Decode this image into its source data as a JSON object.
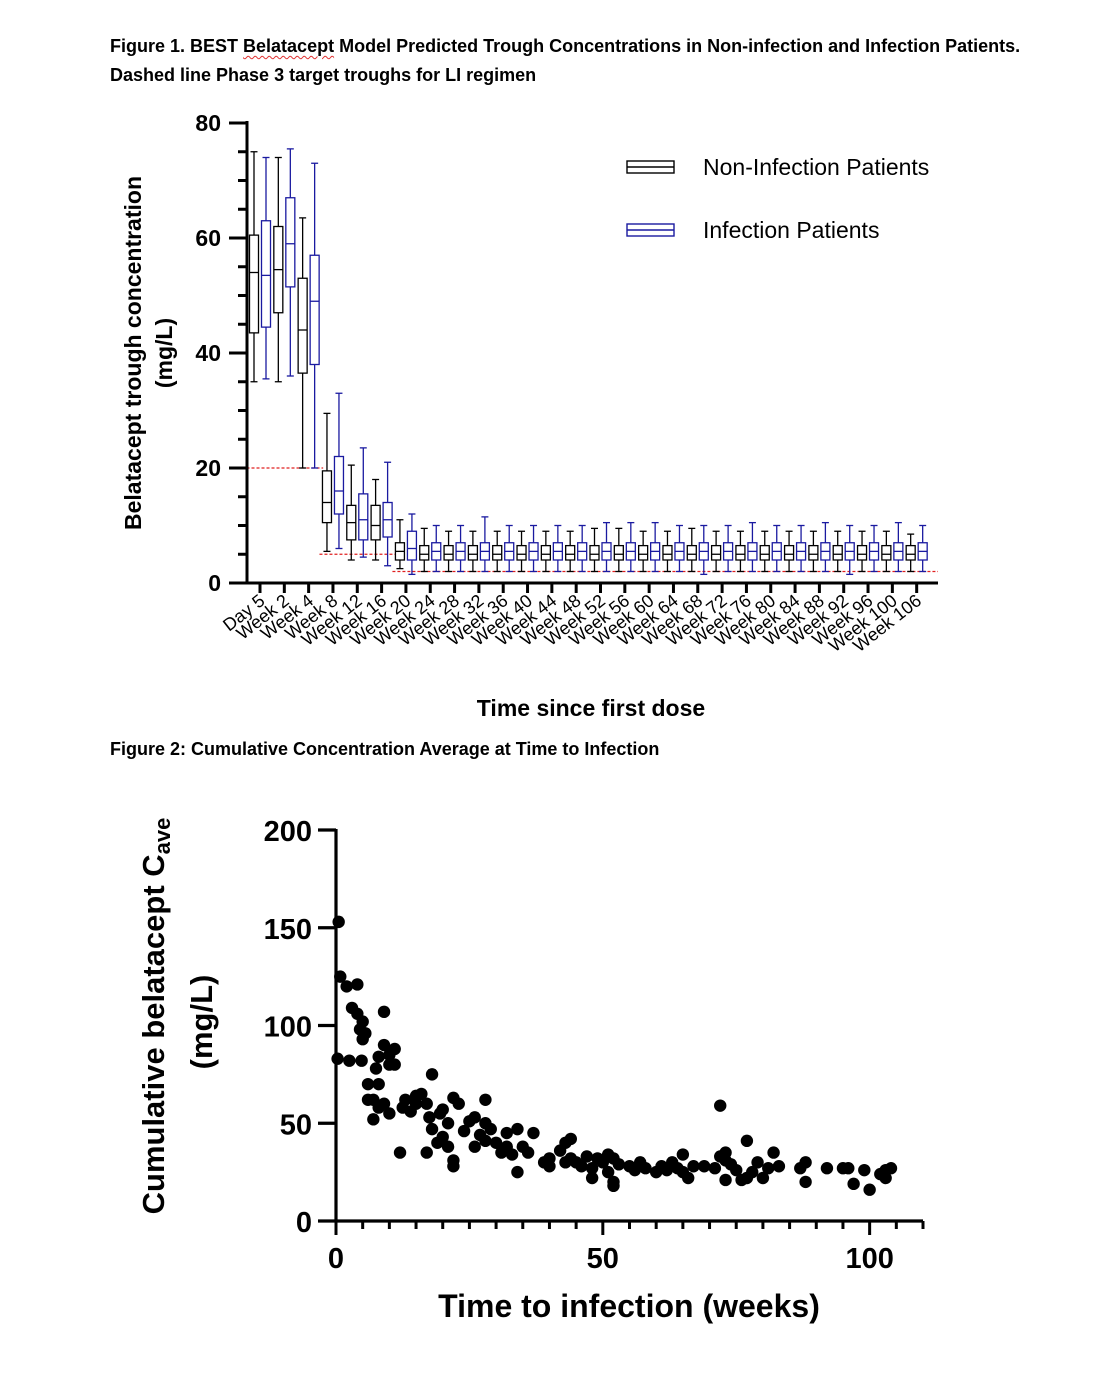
{
  "figure1": {
    "caption_prefix": "Figure 1.  BEST ",
    "caption_squiggle": "Belatacept",
    "caption_rest": " Model Predicted Trough Concentrations in Non-infection and Infection Patients.  Dashed line Phase 3 target troughs for LI regimen"
  },
  "figure2": {
    "caption": "Figure 2:  Cumulative Concentration Average at Time to Infection"
  },
  "chart_data": [
    {
      "type": "box",
      "title": "",
      "xlabel": "Time since first dose",
      "ylabel_line1": "Belatacept trough concentration",
      "ylabel_line2": "(mg/L)",
      "ylim": [
        0,
        80
      ],
      "yticks": [
        0,
        20,
        40,
        60,
        80
      ],
      "legend_position": "top-right",
      "categories": [
        "Day 5",
        "Week 2",
        "Week 4",
        "Week 8",
        "Week 12",
        "Week 16",
        "Week 20",
        "Week 24",
        "Week 28",
        "Week 32",
        "Week 36",
        "Week 40",
        "Week 44",
        "Week 48",
        "Week 52",
        "Week 56",
        "Week 60",
        "Week 64",
        "Week 68",
        "Week 72",
        "Week 76",
        "Week 80",
        "Week 84",
        "Week 88",
        "Week 92",
        "Week 96",
        "Week 100",
        "Week 106"
      ],
      "series": [
        {
          "name": "Non-Infection Patients",
          "color": "#000000",
          "boxes": [
            [
              35,
              43.5,
              54,
              60.5,
              75
            ],
            [
              35,
              47,
              54.5,
              62,
              74
            ],
            [
              20,
              36.5,
              44,
              53,
              63.5
            ],
            [
              5.5,
              10.5,
              14,
              19.5,
              29.5
            ],
            [
              4,
              7.5,
              10.5,
              13.5,
              20.5
            ],
            [
              4,
              7.5,
              10,
              13.5,
              18
            ],
            [
              2.5,
              4,
              5.5,
              7,
              11
            ],
            [
              2,
              4,
              5,
              6.5,
              9.5
            ],
            [
              2,
              4,
              5,
              6.5,
              9
            ],
            [
              2,
              4,
              5,
              6.5,
              9
            ],
            [
              2,
              4,
              5,
              6.5,
              9
            ],
            [
              2,
              4,
              5,
              6.5,
              9
            ],
            [
              2,
              4,
              5,
              6.5,
              9
            ],
            [
              2,
              4,
              5,
              6.5,
              9
            ],
            [
              2,
              4,
              5,
              6.5,
              9.5
            ],
            [
              2,
              4,
              5,
              6.5,
              9.5
            ],
            [
              2,
              4,
              5,
              6.5,
              9
            ],
            [
              2,
              4,
              5,
              6.5,
              9
            ],
            [
              2,
              4,
              5,
              6.5,
              9.5
            ],
            [
              2,
              4,
              5,
              6.5,
              9
            ],
            [
              2,
              4,
              5,
              6.5,
              9
            ],
            [
              2,
              4,
              5,
              6.5,
              9
            ],
            [
              2,
              4,
              5,
              6.5,
              9
            ],
            [
              2,
              4,
              5,
              6.5,
              9
            ],
            [
              2,
              4,
              5,
              6.5,
              9
            ],
            [
              2,
              4,
              5,
              6.5,
              9
            ],
            [
              2,
              4,
              5,
              6.5,
              9
            ],
            [
              2,
              4,
              5,
              6.5,
              8.5
            ]
          ]
        },
        {
          "name": "Infection Patients",
          "color": "#1a1aa0",
          "boxes": [
            [
              35.5,
              44.5,
              53.5,
              63,
              74
            ],
            [
              36,
              51.5,
              59,
              67,
              75.5
            ],
            [
              20,
              38,
              49,
              57,
              73
            ],
            [
              6,
              12,
              16,
              22,
              33
            ],
            [
              4.5,
              7.5,
              11,
              15.5,
              23.5
            ],
            [
              3,
              8,
              11,
              14,
              21
            ],
            [
              1.5,
              4,
              6,
              9,
              12
            ],
            [
              2,
              4,
              5.5,
              7,
              10
            ],
            [
              2,
              4,
              5.5,
              7,
              10
            ],
            [
              2,
              4,
              5.5,
              7,
              11.5
            ],
            [
              2,
              4,
              5.5,
              7,
              10
            ],
            [
              2,
              4,
              5.5,
              7,
              10
            ],
            [
              2,
              4,
              5.5,
              7,
              10
            ],
            [
              2,
              4,
              5.5,
              7,
              10
            ],
            [
              2,
              4,
              5.5,
              7,
              10.5
            ],
            [
              2,
              4,
              5.5,
              7,
              10.5
            ],
            [
              2,
              4,
              5.5,
              7,
              10.5
            ],
            [
              2,
              4,
              5.5,
              7,
              10
            ],
            [
              1.5,
              4,
              5.5,
              7,
              10
            ],
            [
              2,
              4,
              5.5,
              7,
              10
            ],
            [
              2,
              4,
              5.5,
              7,
              10.5
            ],
            [
              2,
              4,
              5.5,
              7,
              10
            ],
            [
              2,
              4,
              5.5,
              7,
              10
            ],
            [
              2,
              4,
              5.5,
              7,
              10.5
            ],
            [
              1.5,
              4,
              5.5,
              7,
              10
            ],
            [
              2,
              4,
              5.5,
              7,
              10
            ],
            [
              2,
              4,
              5.5,
              7,
              10.5
            ],
            [
              2,
              4,
              5.5,
              7,
              10
            ]
          ]
        }
      ],
      "target_lines": [
        {
          "from_category": 0,
          "to_category": 2,
          "value": 20
        },
        {
          "from_category": 3,
          "to_category": 5,
          "value": 5
        },
        {
          "from_category": 6,
          "to_category": 27,
          "value": 2
        }
      ]
    },
    {
      "type": "scatter",
      "title": "",
      "xlabel": "Time to infection (weeks)",
      "ylabel_line1": "Cumulative belatacept C",
      "ylabel_sub": "ave",
      "ylabel_line2": "(mg/L)",
      "xlim": [
        0,
        110
      ],
      "ylim": [
        0,
        200
      ],
      "xticks": [
        0,
        50,
        100
      ],
      "yticks": [
        0,
        50,
        100,
        150,
        200
      ],
      "points": [
        [
          0.5,
          153
        ],
        [
          0.8,
          125
        ],
        [
          2,
          120
        ],
        [
          0.3,
          83
        ],
        [
          2.5,
          82
        ],
        [
          3,
          109
        ],
        [
          4,
          106
        ],
        [
          4,
          121
        ],
        [
          4.5,
          98
        ],
        [
          5,
          102
        ],
        [
          5,
          93
        ],
        [
          4.8,
          82
        ],
        [
          5.5,
          96
        ],
        [
          6,
          70
        ],
        [
          6,
          62
        ],
        [
          7,
          52
        ],
        [
          7,
          62
        ],
        [
          7.5,
          78
        ],
        [
          8,
          84
        ],
        [
          8,
          70
        ],
        [
          8,
          58
        ],
        [
          9,
          107
        ],
        [
          9,
          90
        ],
        [
          9,
          60
        ],
        [
          10,
          85
        ],
        [
          10,
          80
        ],
        [
          10,
          55
        ],
        [
          11,
          88
        ],
        [
          11,
          80
        ],
        [
          12,
          35
        ],
        [
          12.5,
          58
        ],
        [
          13,
          62
        ],
        [
          14,
          56
        ],
        [
          15,
          64
        ],
        [
          15,
          60
        ],
        [
          16,
          65
        ],
        [
          17,
          60
        ],
        [
          17,
          35
        ],
        [
          17.5,
          53
        ],
        [
          18,
          75
        ],
        [
          18,
          47
        ],
        [
          19,
          40
        ],
        [
          19.5,
          55
        ],
        [
          20,
          57
        ],
        [
          20,
          43
        ],
        [
          21,
          38
        ],
        [
          21,
          50
        ],
        [
          22,
          63
        ],
        [
          22,
          31
        ],
        [
          22,
          28
        ],
        [
          23,
          60
        ],
        [
          24,
          46
        ],
        [
          25,
          51
        ],
        [
          26,
          38
        ],
        [
          26,
          53
        ],
        [
          27,
          44
        ],
        [
          28,
          62
        ],
        [
          28,
          50
        ],
        [
          28,
          41
        ],
        [
          29,
          47
        ],
        [
          30,
          40
        ],
        [
          31,
          35
        ],
        [
          32,
          45
        ],
        [
          32,
          38
        ],
        [
          33,
          34
        ],
        [
          34,
          47
        ],
        [
          34,
          25
        ],
        [
          35,
          38
        ],
        [
          36,
          35
        ],
        [
          37,
          45
        ],
        [
          39,
          30
        ],
        [
          40,
          32
        ],
        [
          40,
          28
        ],
        [
          42,
          36
        ],
        [
          43,
          30
        ],
        [
          43,
          40
        ],
        [
          44,
          42
        ],
        [
          44,
          32
        ],
        [
          45,
          30
        ],
        [
          46,
          28
        ],
        [
          47,
          33
        ],
        [
          48,
          27
        ],
        [
          48,
          22
        ],
        [
          49,
          32
        ],
        [
          50,
          30
        ],
        [
          51,
          34
        ],
        [
          51,
          25
        ],
        [
          52,
          32
        ],
        [
          52,
          18
        ],
        [
          52,
          20
        ],
        [
          53,
          29
        ],
        [
          55,
          28
        ],
        [
          56,
          26
        ],
        [
          57,
          30
        ],
        [
          58,
          27
        ],
        [
          60,
          25
        ],
        [
          61,
          28
        ],
        [
          62,
          26
        ],
        [
          63,
          30
        ],
        [
          64,
          27
        ],
        [
          65,
          25
        ],
        [
          65,
          34
        ],
        [
          66,
          22
        ],
        [
          67,
          28
        ],
        [
          69,
          28
        ],
        [
          71,
          27
        ],
        [
          72,
          33
        ],
        [
          72,
          59
        ],
        [
          73,
          31
        ],
        [
          73,
          35
        ],
        [
          73,
          21
        ],
        [
          74,
          29
        ],
        [
          75,
          26
        ],
        [
          76,
          21
        ],
        [
          77,
          22
        ],
        [
          77,
          41
        ],
        [
          78,
          25
        ],
        [
          79,
          30
        ],
        [
          80,
          22
        ],
        [
          81,
          27
        ],
        [
          82,
          35
        ],
        [
          83,
          28
        ],
        [
          87,
          27
        ],
        [
          88,
          30
        ],
        [
          88,
          20
        ],
        [
          92,
          27
        ],
        [
          95,
          27
        ],
        [
          96,
          27
        ],
        [
          97,
          19
        ],
        [
          99,
          26
        ],
        [
          100,
          16
        ],
        [
          102,
          24
        ],
        [
          103,
          22
        ],
        [
          104,
          27
        ],
        [
          103,
          26
        ]
      ]
    }
  ]
}
